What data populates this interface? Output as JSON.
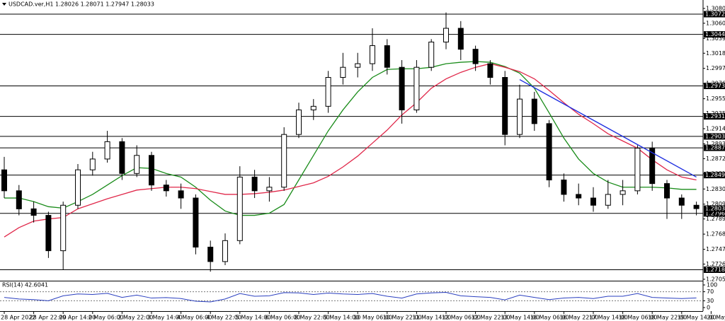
{
  "chart_data": [
    {
      "type": "candlestick",
      "title": "USDCAD.ver,H1  1.28026 1.28071 1.27947 1.28033",
      "categories": [
        "28 Apr 2022",
        null,
        "28 Apr 22:00",
        null,
        "29 Apr 14:00",
        null,
        "2 May 06:00",
        null,
        "2 May 22:00",
        null,
        "3 May 14:00",
        null,
        "4 May 06:00",
        null,
        "4 May 22:00",
        null,
        "5 May 14:00",
        null,
        "6 May 06:00",
        null,
        "8 May 22:00",
        null,
        "9 May 14:00",
        null,
        "10 May 06:00",
        null,
        "10 May 22:00",
        null,
        "11 May 14:00",
        null,
        "12 May 06:00",
        null,
        "12 May 22:00",
        null,
        "13 May 14:00",
        null,
        "16 May 06:00",
        null,
        "16 May 22:00",
        null,
        "17 May 14:00",
        null,
        "18 May 06:00",
        null,
        "18 May 22:00",
        null,
        "19 May 14:00",
        null,
        "20 May 06:00"
      ],
      "open": [
        1.2857,
        1.2828,
        1.2803,
        1.2794,
        1.2745,
        1.2808,
        1.2857,
        1.2872,
        1.2896,
        1.2852,
        1.2877,
        1.2836,
        1.2828,
        1.2818,
        1.275,
        1.273,
        1.2759,
        1.2847,
        1.2828,
        1.2833,
        1.2906,
        1.294,
        1.2945,
        1.2985,
        1.2999,
        1.3004,
        1.3029,
        1.2999,
        1.294,
        1.2999,
        1.3034,
        1.3053,
        1.3024,
        1.3004,
        1.2985,
        1.2906,
        1.2955,
        1.2921,
        1.2843,
        1.2823,
        1.2818,
        1.2808,
        1.2823,
        1.2828,
        1.2887,
        1.2838,
        1.2818,
        1.2808,
        null
      ],
      "high": [
        1.2875,
        1.2836,
        1.2813,
        1.2799,
        1.2813,
        1.2865,
        1.2882,
        1.2911,
        1.2901,
        1.2891,
        1.2882,
        1.2843,
        1.2838,
        1.2823,
        1.2759,
        1.2769,
        1.2862,
        1.2857,
        1.2847,
        1.2916,
        1.295,
        1.2955,
        1.2994,
        1.3019,
        1.3019,
        1.3053,
        1.3038,
        1.3009,
        1.3009,
        1.3038,
        1.3075,
        1.3063,
        1.3029,
        1.3009,
        1.2994,
        1.2975,
        1.2965,
        1.2926,
        1.2852,
        1.2838,
        1.2833,
        1.2843,
        1.2843,
        1.2891,
        1.2896,
        1.2843,
        1.2823,
        1.2813,
        null
      ],
      "low": [
        1.2818,
        1.2794,
        1.2784,
        1.2735,
        1.2719,
        1.2803,
        1.2849,
        1.2867,
        1.2843,
        1.2847,
        1.2828,
        1.282,
        1.2803,
        1.274,
        1.2716,
        1.2725,
        1.2754,
        1.2818,
        1.2813,
        1.2828,
        1.2901,
        1.2926,
        1.2936,
        1.2975,
        1.2985,
        1.2994,
        1.2989,
        1.2921,
        1.2936,
        1.2994,
        1.3024,
        1.3009,
        1.2994,
        1.2975,
        1.2891,
        1.2901,
        1.2911,
        1.2833,
        1.2813,
        1.2808,
        1.2799,
        1.2803,
        1.2808,
        1.2823,
        1.2828,
        1.2789,
        1.2789,
        1.2794,
        null
      ],
      "close": [
        1.2828,
        1.2803,
        1.2794,
        1.2745,
        1.2808,
        1.2857,
        1.2872,
        1.2896,
        1.2852,
        1.2877,
        1.2836,
        1.2828,
        1.2818,
        1.275,
        1.273,
        1.2759,
        1.2847,
        1.2828,
        1.2833,
        1.2906,
        1.294,
        1.2945,
        1.2985,
        1.2999,
        1.3004,
        1.3029,
        1.2999,
        1.294,
        1.2999,
        1.3034,
        1.3053,
        1.3024,
        1.3004,
        1.2985,
        1.2906,
        1.2955,
        1.2921,
        1.2843,
        1.2823,
        1.2818,
        1.2808,
        1.2823,
        1.2828,
        1.2887,
        1.2838,
        1.2818,
        1.2808,
        1.28033,
        null
      ],
      "color": "#000000",
      "series": [
        {
          "color": "#1a8c1a",
          "values": [
            1.2818,
            1.2818,
            1.2813,
            1.2806,
            1.2804,
            1.2813,
            1.2823,
            1.2836,
            1.2849,
            1.286,
            1.2859,
            1.2852,
            1.2847,
            1.2833,
            1.2815,
            1.28,
            1.2794,
            1.2794,
            1.2797,
            1.2809,
            1.2843,
            1.2877,
            1.2911,
            1.294,
            1.2965,
            1.2985,
            1.2996,
            1.2997,
            1.2997,
            1.2999,
            1.3004,
            1.3006,
            1.3007,
            1.3006,
            1.3,
            1.2991,
            1.297,
            1.2936,
            1.2901,
            1.2872,
            1.2852,
            1.284,
            1.2833,
            1.2833,
            1.2833,
            1.2832,
            1.283,
            1.283,
            null
          ]
        },
        {
          "color": "#e0284a",
          "values": [
            1.2764,
            1.2777,
            1.2786,
            1.2789,
            1.2791,
            1.2803,
            1.281,
            1.2817,
            1.2823,
            1.2829,
            1.2831,
            1.2833,
            1.2833,
            1.2831,
            1.2827,
            1.2823,
            1.2823,
            1.2824,
            1.2826,
            1.2829,
            1.2834,
            1.2839,
            1.2848,
            1.2861,
            1.2876,
            1.2894,
            1.2912,
            1.2933,
            1.295,
            1.297,
            1.2983,
            1.2992,
            1.2999,
            1.3004,
            1.2999,
            1.2993,
            1.2983,
            1.2967,
            1.295,
            1.2934,
            1.2921,
            1.2907,
            1.2897,
            1.2887,
            1.2871,
            1.2857,
            1.2847,
            1.2843,
            null
          ]
        }
      ],
      "trendline": {
        "color": "#1f2fe0",
        "x": [
          35,
          47
        ],
        "values": [
          1.2982,
          1.2847
        ]
      },
      "levels": [
        1.30726,
        1.30446,
        1.29732,
        {
          "value": 1.2931,
          "label": "1.29310"
        },
        1.29033,
        1.28875,
        1.28497,
        1.27967,
        1.27187
      ],
      "ylim": [
        1.27035,
        1.30922
      ],
      "yticks": [
        1.30805,
        {
          "value": 1.306,
          "label": "1.30600"
        },
        {
          "value": 1.3039,
          "label": "1.30390"
        },
        1.30185,
        1.29975,
        1.29765,
        1.29555,
        {
          "value": 1.2935,
          "label": "1.29350"
        },
        {
          "value": 1.2914,
          "label": "1.29140"
        },
        {
          "value": 1.2893,
          "label": "1.28930"
        },
        1.28725,
        1.28515,
        1.28305,
        1.28095,
        {
          "value": 1.2789,
          "label": "1.27890"
        },
        {
          "value": 1.2768,
          "label": "1.27680"
        },
        {
          "value": 1.2747,
          "label": "1.27470"
        },
        1.27265,
        1.27055
      ],
      "grid": false
    },
    {
      "type": "line",
      "title": "RSI(14) 42.6041",
      "color": "#2a3fc0",
      "values": [
        45,
        38,
        35,
        30,
        52,
        60,
        58,
        63,
        45,
        55,
        42,
        44,
        40,
        28,
        25,
        38,
        62,
        50,
        52,
        66,
        65,
        58,
        64,
        60,
        58,
        62,
        50,
        42,
        60,
        65,
        67,
        52,
        48,
        45,
        34,
        55,
        45,
        35,
        42,
        45,
        40,
        50,
        50,
        62,
        45,
        42,
        40,
        42.6041,
        null
      ],
      "ylim": [
        0,
        100
      ],
      "yticks": [
        100,
        70,
        30,
        0
      ],
      "levels": [
        70,
        30
      ]
    }
  ]
}
